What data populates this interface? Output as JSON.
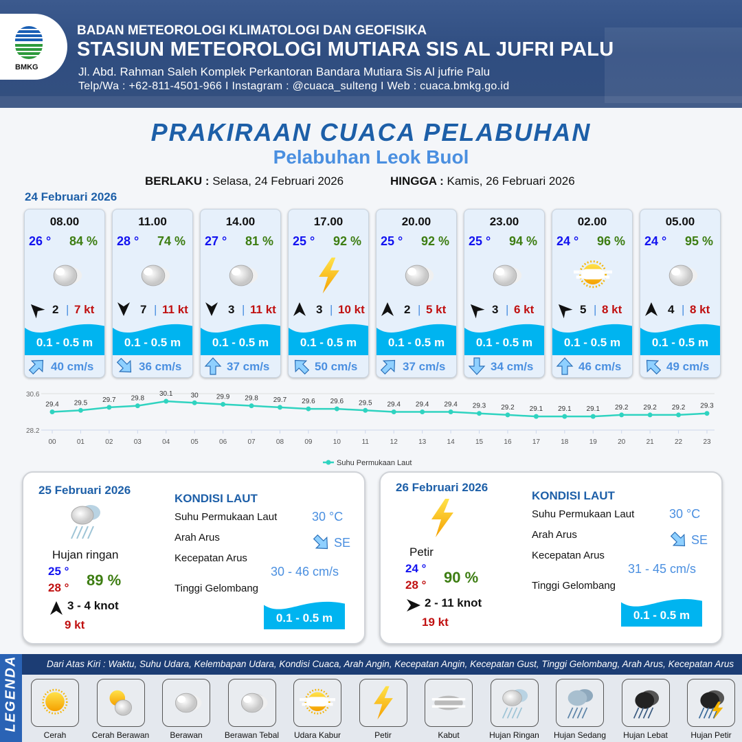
{
  "header": {
    "agency": "BADAN METEOROLOGI KLIMATOLOGI DAN GEOFISIKA",
    "station": "STASIUN METEOROLOGI MUTIARA SIS AL JUFRI PALU",
    "address": "Jl. Abd. Rahman Saleh Komplek Perkantoran Bandara Mutiara Sis Al jufrie Palu",
    "contact": "Telp/Wa : +62-811-4501-966  I  Instagram : @cuaca_sulteng  I  Web : cuaca.bmkg.go.id",
    "logo_text": "BMKG"
  },
  "title": "PRAKIRAAN CUACA PELABUHAN",
  "subtitle": "Pelabuhan Leok Buol",
  "validity": {
    "from_label": "BERLAKU :",
    "from_value": "Selasa, 24 Februari 2026",
    "to_label": "HINGGA :",
    "to_value": "Kamis, 26 Februari 2026"
  },
  "day1_date": "24 Februari 2026",
  "colors": {
    "temp": "#1212f0",
    "humidity": "#3d7d12",
    "gust": "#c01010",
    "wave": "#00b4f0",
    "accent": "#1d5fa8"
  },
  "forecasts": [
    {
      "time": "08.00",
      "temp": "26 °",
      "humidity": "84 %",
      "icon": "cloudy-icon",
      "wind_dir_deg": -45,
      "wind_speed": "2",
      "gust": "7 kt",
      "wave": "0.1 - 0.5 m",
      "current_dir_deg": 45,
      "current_speed": "40 cm/s"
    },
    {
      "time": "11.00",
      "temp": "28 °",
      "humidity": "74 %",
      "icon": "cloudy-icon",
      "wind_dir_deg": 180,
      "wind_speed": "7",
      "gust": "11 kt",
      "wave": "0.1 - 0.5 m",
      "current_dir_deg": 135,
      "current_speed": "36 cm/s"
    },
    {
      "time": "14.00",
      "temp": "27 °",
      "humidity": "81 %",
      "icon": "cloudy-icon",
      "wind_dir_deg": 180,
      "wind_speed": "3",
      "gust": "11 kt",
      "wave": "0.1 - 0.5 m",
      "current_dir_deg": 0,
      "current_speed": "37 cm/s"
    },
    {
      "time": "17.00",
      "temp": "25 °",
      "humidity": "92 %",
      "icon": "lightning-icon",
      "wind_dir_deg": 0,
      "wind_speed": "3",
      "gust": "10 kt",
      "wave": "0.1 - 0.5 m",
      "current_dir_deg": -45,
      "current_speed": "50 cm/s"
    },
    {
      "time": "20.00",
      "temp": "25 °",
      "humidity": "92 %",
      "icon": "cloudy-icon",
      "wind_dir_deg": 0,
      "wind_speed": "2",
      "gust": "5 kt",
      "wave": "0.1 - 0.5 m",
      "current_dir_deg": 45,
      "current_speed": "37 cm/s"
    },
    {
      "time": "23.00",
      "temp": "25 °",
      "humidity": "94 %",
      "icon": "cloudy-icon",
      "wind_dir_deg": -45,
      "wind_speed": "3",
      "gust": "6 kt",
      "wave": "0.1 - 0.5 m",
      "current_dir_deg": 180,
      "current_speed": "34 cm/s"
    },
    {
      "time": "02.00",
      "temp": "24 °",
      "humidity": "96 %",
      "icon": "haze-icon",
      "wind_dir_deg": -45,
      "wind_speed": "5",
      "gust": "8 kt",
      "wave": "0.1 - 0.5 m",
      "current_dir_deg": 0,
      "current_speed": "46 cm/s"
    },
    {
      "time": "05.00",
      "temp": "24 °",
      "humidity": "95 %",
      "icon": "cloudy-icon",
      "wind_dir_deg": 0,
      "wind_speed": "4",
      "gust": "8 kt",
      "wave": "0.1 - 0.5 m",
      "current_dir_deg": -45,
      "current_speed": "49 cm/s"
    }
  ],
  "chart_data": {
    "type": "line",
    "x": [
      "00",
      "01",
      "02",
      "03",
      "04",
      "05",
      "06",
      "07",
      "08",
      "09",
      "10",
      "11",
      "12",
      "13",
      "14",
      "15",
      "16",
      "17",
      "18",
      "19",
      "20",
      "21",
      "22",
      "23"
    ],
    "series": [
      {
        "name": "Suhu Permukaan Laut",
        "values": [
          29.4,
          29.5,
          29.7,
          29.8,
          30.1,
          30.0,
          29.9,
          29.8,
          29.7,
          29.6,
          29.6,
          29.5,
          29.4,
          29.4,
          29.4,
          29.3,
          29.2,
          29.1,
          29.1,
          29.1,
          29.2,
          29.2,
          29.2,
          29.3
        ],
        "color": "#2fd3c0"
      }
    ],
    "ylim": [
      28.2,
      30.6
    ],
    "yticks": [
      "28.2",
      "30.6"
    ],
    "legend": "bottom",
    "grid": true
  },
  "days": [
    {
      "date": "25 Februari 2026",
      "icon": "light-rain-icon",
      "condition": "Hujan ringan",
      "temp_min": "25 °",
      "temp_max": "28 °",
      "humidity": "89 %",
      "wind_dir_deg": 0,
      "wind": "3  - 4 knot",
      "gust": "9 kt",
      "sea_title": "KONDISI LAUT",
      "sst_label": "Suhu Permukaan Laut",
      "sst": "30 °C",
      "current_dir_label": "Arah Arus",
      "current_dir": "SE",
      "current_speed_label": "Kecepatan Arus",
      "current_speed": "30  - 46 cm/s",
      "wave_label": "Tinggi Gelombang",
      "wave": "0.1 - 0.5 m"
    },
    {
      "date": "26 Februari 2026",
      "icon": "lightning-icon",
      "condition": "Petir",
      "temp_min": "24 °",
      "temp_max": "28 °",
      "humidity": "90 %",
      "wind_dir_deg": 90,
      "wind": "2  - 11 knot",
      "gust": "19 kt",
      "sea_title": "KONDISI LAUT",
      "sst_label": "Suhu Permukaan Laut",
      "sst": "30 °C",
      "current_dir_label": "Arah Arus",
      "current_dir": "SE",
      "current_speed_label": "Kecepatan Arus",
      "current_speed": "31  - 45 cm/s",
      "wave_label": "Tinggi Gelombang",
      "wave": "0.1 - 0.5 m"
    }
  ],
  "legend": {
    "title": "LEGENDA",
    "description": "Dari Atas Kiri : Waktu, Suhu Udara, Kelembapan Udara, Kondisi Cuaca, Arah Angin, Kecepatan Angin, Kecepatan Gust, Tinggi Gelombang, Arah Arus, Kecepatan Arus",
    "items": [
      {
        "label": "Cerah",
        "icon": "sunny-icon"
      },
      {
        "label": "Cerah Berawan",
        "icon": "partly-cloudy-icon"
      },
      {
        "label": "Berawan",
        "icon": "cloudy-icon"
      },
      {
        "label": "Berawan Tebal",
        "icon": "overcast-icon"
      },
      {
        "label": "Udara Kabur",
        "icon": "haze-icon"
      },
      {
        "label": "Petir",
        "icon": "lightning-icon"
      },
      {
        "label": "Kabut",
        "icon": "fog-icon"
      },
      {
        "label": "Hujan Ringan",
        "icon": "light-rain-icon"
      },
      {
        "label": "Hujan Sedang",
        "icon": "moderate-rain-icon"
      },
      {
        "label": "Hujan Lebat",
        "icon": "heavy-rain-icon"
      },
      {
        "label": "Hujan Petir",
        "icon": "thunderstorm-icon"
      }
    ]
  }
}
